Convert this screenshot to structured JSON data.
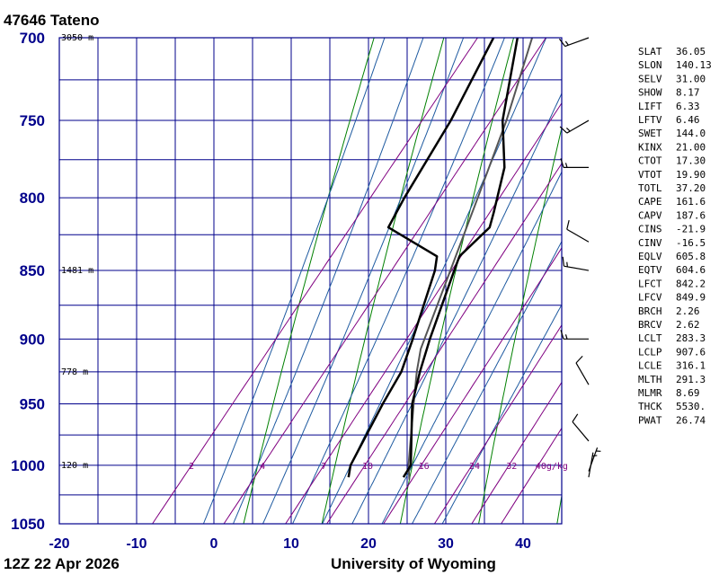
{
  "station_title": "47646  Tateno",
  "footer_left": "12Z 22 Apr 2026",
  "footer_right": "University of Wyoming",
  "colors": {
    "grid": "#00008b",
    "dry_adiabat": "#008000",
    "moist_adiabat": "#1e5aa0",
    "mixing_ratio": "#800080",
    "temperature": "#000000",
    "dewpoint": "#000000",
    "parcel": "#555555",
    "wind_barb": "#000000"
  },
  "chart_data": {
    "type": "skew-t log-p sounding",
    "title": "47646  Tateno",
    "x_axis": {
      "unit": "degC",
      "range": [
        -20,
        45
      ],
      "ticks": [
        -20,
        -10,
        0,
        10,
        20,
        30,
        40
      ]
    },
    "y_axis": {
      "unit": "hPa",
      "scale": "log",
      "range": [
        1050,
        700
      ],
      "ticks": [
        700,
        750,
        800,
        850,
        900,
        950,
        1000,
        1050
      ]
    },
    "height_labels": [
      {
        "p": 700,
        "label": "3050 m"
      },
      {
        "p": 850,
        "label": "1481 m"
      },
      {
        "p": 925,
        "label": "778 m"
      },
      {
        "p": 1000,
        "label": "120 m"
      }
    ],
    "mixing_ratio_lines": [
      {
        "value": 2,
        "label": "2"
      },
      {
        "value": 4,
        "label": "4"
      },
      {
        "value": 7,
        "label": "7"
      },
      {
        "value": 10,
        "label": "10"
      },
      {
        "value": 16,
        "label": "16"
      },
      {
        "value": 24,
        "label": "24"
      },
      {
        "value": 32,
        "label": "32"
      },
      {
        "value": 40,
        "label": "40g/kg"
      }
    ],
    "dry_adiabats_theta_c": [
      0,
      10,
      20,
      30,
      40,
      50,
      60,
      70,
      80
    ],
    "moist_adiabats_thetaw_c": [
      -4,
      0,
      4,
      8,
      12,
      16,
      20,
      24,
      28
    ],
    "temperature": [
      {
        "p": 1010,
        "t": 20.0
      },
      {
        "p": 1000,
        "t": 19.8
      },
      {
        "p": 950,
        "t": 14.0
      },
      {
        "p": 925,
        "t": 11.9
      },
      {
        "p": 900,
        "t": 10.0
      },
      {
        "p": 850,
        "t": 6.5
      },
      {
        "p": 840,
        "t": 5.8
      },
      {
        "p": 820,
        "t": 6.9
      },
      {
        "p": 810,
        "t": 6.0
      },
      {
        "p": 780,
        "t": 3.0
      },
      {
        "p": 750,
        "t": -1.8
      },
      {
        "p": 700,
        "t": -7.9
      }
    ],
    "dewpoint": [
      {
        "p": 1010,
        "t": 12.9
      },
      {
        "p": 1000,
        "t": 12.0
      },
      {
        "p": 950,
        "t": 10.2
      },
      {
        "p": 925,
        "t": 9.5
      },
      {
        "p": 900,
        "t": 7.8
      },
      {
        "p": 850,
        "t": 4.0
      },
      {
        "p": 840,
        "t": 2.9
      },
      {
        "p": 820,
        "t": -6.2
      },
      {
        "p": 800,
        "t": -7.0
      },
      {
        "p": 750,
        "t": -8.5
      },
      {
        "p": 700,
        "t": -11.0
      }
    ],
    "parcel": [
      {
        "p": 1012,
        "t": 21.0
      },
      {
        "p": 1000,
        "t": 19.5
      },
      {
        "p": 950,
        "t": 14.2
      },
      {
        "p": 925,
        "t": 11.5
      },
      {
        "p": 907.6,
        "t": 9.8
      },
      {
        "p": 850,
        "t": 6.0
      },
      {
        "p": 800,
        "t": 2.5
      },
      {
        "p": 750,
        "t": -1.3
      },
      {
        "p": 700,
        "t": -6.0
      }
    ],
    "wind_barbs": [
      {
        "p": 700,
        "dir": 250,
        "kt": 15
      },
      {
        "p": 750,
        "dir": 240,
        "kt": 15
      },
      {
        "p": 780,
        "dir": 270,
        "kt": 15
      },
      {
        "p": 830,
        "dir": 300,
        "kt": 10
      },
      {
        "p": 850,
        "dir": 280,
        "kt": 15
      },
      {
        "p": 900,
        "dir": 270,
        "kt": 15
      },
      {
        "p": 935,
        "dir": 330,
        "kt": 10
      },
      {
        "p": 980,
        "dir": 320,
        "kt": 10
      },
      {
        "p": 1005,
        "dir": 20,
        "kt": 5
      },
      {
        "p": 1010,
        "dir": 10,
        "kt": 5
      }
    ]
  },
  "indices": [
    {
      "name": "SLAT",
      "value": "36.05"
    },
    {
      "name": "SLON",
      "value": "140.13"
    },
    {
      "name": "SELV",
      "value": "31.00"
    },
    {
      "name": "SHOW",
      "value": "8.17"
    },
    {
      "name": "LIFT",
      "value": "6.33"
    },
    {
      "name": "LFTV",
      "value": "6.46"
    },
    {
      "name": "SWET",
      "value": "144.0"
    },
    {
      "name": "KINX",
      "value": "21.00"
    },
    {
      "name": "CTOT",
      "value": "17.30"
    },
    {
      "name": "VTOT",
      "value": "19.90"
    },
    {
      "name": "TOTL",
      "value": "37.20"
    },
    {
      "name": "CAPE",
      "value": "161.6"
    },
    {
      "name": "CAPV",
      "value": "187.6"
    },
    {
      "name": "CINS",
      "value": "-21.9"
    },
    {
      "name": "CINV",
      "value": "-16.5"
    },
    {
      "name": "EQLV",
      "value": "605.8"
    },
    {
      "name": "EQTV",
      "value": "604.6"
    },
    {
      "name": "LFCT",
      "value": "842.2"
    },
    {
      "name": "LFCV",
      "value": "849.9"
    },
    {
      "name": "BRCH",
      "value": "2.26"
    },
    {
      "name": "BRCV",
      "value": "2.62"
    },
    {
      "name": "LCLT",
      "value": "283.3"
    },
    {
      "name": "LCLP",
      "value": "907.6"
    },
    {
      "name": "LCLE",
      "value": "316.1"
    },
    {
      "name": "MLTH",
      "value": "291.3"
    },
    {
      "name": "MLMR",
      "value": "8.69"
    },
    {
      "name": "THCK",
      "value": "5530."
    },
    {
      "name": "PWAT",
      "value": "26.74"
    }
  ]
}
